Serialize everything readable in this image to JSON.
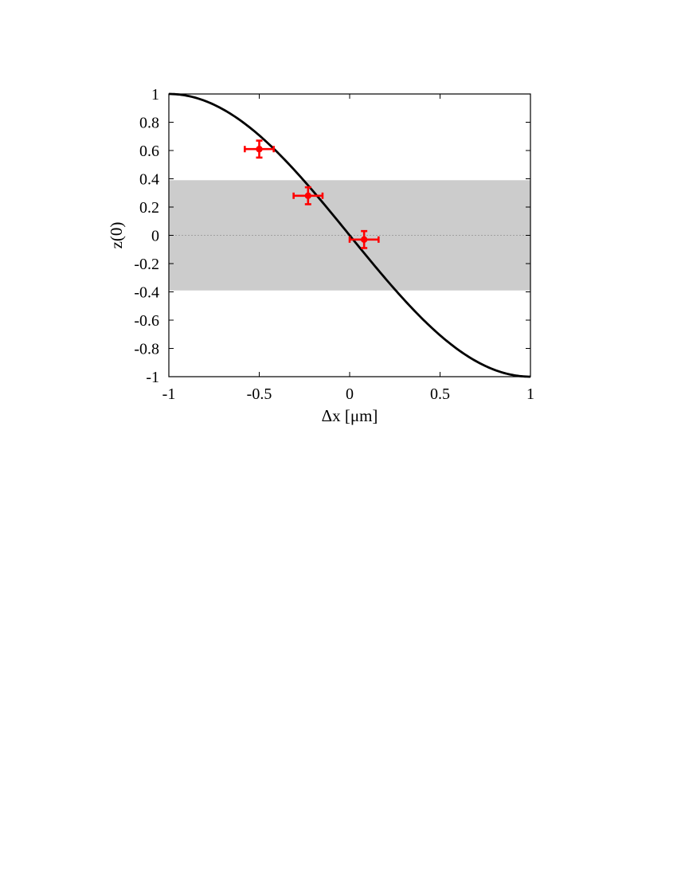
{
  "chart_data": {
    "type": "scatter",
    "title": "",
    "xlabel": "Δx [μm]",
    "ylabel": "z(0)",
    "xlim": [
      -1,
      1
    ],
    "ylim": [
      -1,
      1
    ],
    "xticks": [
      {
        "value": -1,
        "label": "-1"
      },
      {
        "value": -0.5,
        "label": "-0.5"
      },
      {
        "value": 0,
        "label": "0"
      },
      {
        "value": 0.5,
        "label": "0.5"
      },
      {
        "value": 1,
        "label": "1"
      }
    ],
    "yticks": [
      {
        "value": 1,
        "label": "1"
      },
      {
        "value": 0.8,
        "label": "0.8"
      },
      {
        "value": 0.6,
        "label": "0.6"
      },
      {
        "value": 0.4,
        "label": "0.4"
      },
      {
        "value": 0.2,
        "label": "0.2"
      },
      {
        "value": 0,
        "label": "0"
      },
      {
        "value": -0.2,
        "label": "-0.2"
      },
      {
        "value": -0.4,
        "label": "-0.4"
      },
      {
        "value": -0.6,
        "label": "-0.6"
      },
      {
        "value": -0.8,
        "label": "-0.8"
      },
      {
        "value": -1,
        "label": "-1"
      }
    ],
    "grid": false,
    "legend": "none",
    "band": {
      "y_min": -0.39,
      "y_max": 0.39,
      "color": "#cccccc"
    },
    "zero_line": {
      "y": 0,
      "color": "#a0a0a0",
      "style": "dotted"
    },
    "curve": {
      "type": "line",
      "function": "cos(pi*(x+1)/2)",
      "color": "#000000"
    },
    "points": {
      "type": "scatter-errorbar",
      "color": "#ff0000",
      "x": [
        -0.5,
        -0.23,
        0.08
      ],
      "y": [
        0.61,
        0.28,
        -0.03
      ],
      "xerr": [
        0.08,
        0.08,
        0.08
      ],
      "yerr": [
        0.06,
        0.06,
        0.06
      ]
    }
  }
}
